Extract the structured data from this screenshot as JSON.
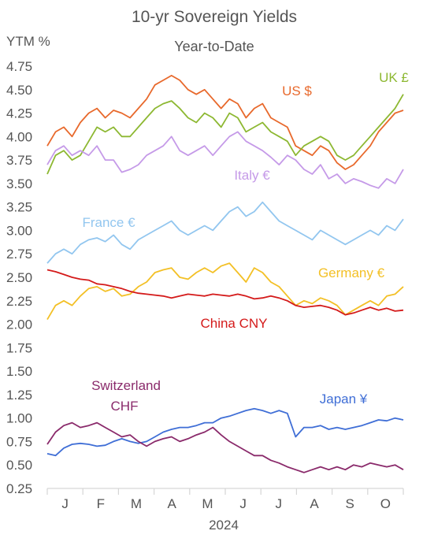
{
  "chart_data": {
    "type": "line",
    "title": "10-yr Sovereign Yields",
    "subtitle": "Year-to-Date",
    "ylabel": "YTM %",
    "xlabel": "2024",
    "ylim": [
      0.25,
      4.75
    ],
    "y_ticks": [
      "4.75",
      "4.50",
      "4.25",
      "4.00",
      "3.75",
      "3.50",
      "3.25",
      "3.00",
      "2.75",
      "2.50",
      "2.25",
      "2.00",
      "1.75",
      "1.50",
      "1.25",
      "1.00",
      "0.75",
      "0.50",
      "0.25"
    ],
    "months": [
      "J",
      "F",
      "M",
      "A",
      "M",
      "J",
      "J",
      "A",
      "S",
      "O"
    ],
    "x_unit": "trading week of 2024 (0 = first week of January)",
    "x_max": 43,
    "series": [
      {
        "name": "US $",
        "color": "#e8692c",
        "x": [
          0,
          1,
          2,
          3,
          4,
          5,
          6,
          7,
          8,
          9,
          10,
          11,
          12,
          13,
          14,
          15,
          16,
          17,
          18,
          19,
          20,
          21,
          22,
          23,
          24,
          25,
          26,
          27,
          28,
          29,
          30,
          31,
          32,
          33,
          34,
          35,
          36,
          37,
          38,
          39,
          40,
          41,
          42,
          43
        ],
        "values": [
          3.9,
          4.05,
          4.1,
          4.0,
          4.15,
          4.25,
          4.3,
          4.2,
          4.28,
          4.25,
          4.2,
          4.3,
          4.4,
          4.55,
          4.6,
          4.65,
          4.6,
          4.5,
          4.45,
          4.5,
          4.4,
          4.3,
          4.4,
          4.35,
          4.2,
          4.3,
          4.35,
          4.2,
          4.15,
          4.1,
          3.9,
          3.85,
          3.8,
          3.9,
          3.85,
          3.72,
          3.65,
          3.7,
          3.8,
          3.9,
          4.05,
          4.15,
          4.25,
          4.28
        ]
      },
      {
        "name": "UK £",
        "color": "#8db832",
        "x": [
          0,
          1,
          2,
          3,
          4,
          5,
          6,
          7,
          8,
          9,
          10,
          11,
          12,
          13,
          14,
          15,
          16,
          17,
          18,
          19,
          20,
          21,
          22,
          23,
          24,
          25,
          26,
          27,
          28,
          29,
          30,
          31,
          32,
          33,
          34,
          35,
          36,
          37,
          38,
          39,
          40,
          41,
          42,
          43
        ],
        "values": [
          3.6,
          3.8,
          3.85,
          3.75,
          3.8,
          3.95,
          4.1,
          4.05,
          4.1,
          4.0,
          4.0,
          4.1,
          4.2,
          4.3,
          4.35,
          4.38,
          4.3,
          4.2,
          4.15,
          4.25,
          4.2,
          4.1,
          4.25,
          4.2,
          4.05,
          4.1,
          4.15,
          4.05,
          4.0,
          3.95,
          3.8,
          3.9,
          3.95,
          4.0,
          3.95,
          3.8,
          3.75,
          3.8,
          3.9,
          4.0,
          4.1,
          4.2,
          4.3,
          4.45
        ]
      },
      {
        "name": "Italy €",
        "color": "#c59ae8",
        "x": [
          0,
          1,
          2,
          3,
          4,
          5,
          6,
          7,
          8,
          9,
          10,
          11,
          12,
          13,
          14,
          15,
          16,
          17,
          18,
          19,
          20,
          21,
          22,
          23,
          24,
          25,
          26,
          27,
          28,
          29,
          30,
          31,
          32,
          33,
          34,
          35,
          36,
          37,
          38,
          39,
          40,
          41,
          42,
          43
        ],
        "values": [
          3.7,
          3.85,
          3.9,
          3.8,
          3.85,
          3.8,
          3.9,
          3.75,
          3.75,
          3.62,
          3.65,
          3.7,
          3.8,
          3.85,
          3.9,
          4.0,
          3.85,
          3.8,
          3.85,
          3.9,
          3.8,
          3.9,
          4.0,
          4.05,
          3.95,
          3.9,
          3.85,
          3.78,
          3.7,
          3.8,
          3.75,
          3.65,
          3.6,
          3.7,
          3.55,
          3.6,
          3.5,
          3.55,
          3.52,
          3.48,
          3.45,
          3.55,
          3.5,
          3.65
        ]
      },
      {
        "name": "France €",
        "color": "#92c6ef",
        "x": [
          0,
          1,
          2,
          3,
          4,
          5,
          6,
          7,
          8,
          9,
          10,
          11,
          12,
          13,
          14,
          15,
          16,
          17,
          18,
          19,
          20,
          21,
          22,
          23,
          24,
          25,
          26,
          27,
          28,
          29,
          30,
          31,
          32,
          33,
          34,
          35,
          36,
          37,
          38,
          39,
          40,
          41,
          42,
          43
        ],
        "values": [
          2.65,
          2.75,
          2.8,
          2.75,
          2.85,
          2.9,
          2.92,
          2.88,
          2.95,
          2.85,
          2.8,
          2.9,
          2.95,
          3.0,
          3.05,
          3.1,
          3.0,
          2.95,
          3.0,
          3.05,
          3.0,
          3.1,
          3.2,
          3.25,
          3.15,
          3.2,
          3.3,
          3.2,
          3.1,
          3.05,
          3.0,
          2.95,
          2.9,
          3.0,
          2.95,
          2.9,
          2.85,
          2.9,
          2.95,
          3.0,
          2.95,
          3.05,
          3.0,
          3.12
        ]
      },
      {
        "name": "Germany €",
        "color": "#f3c026",
        "x": [
          0,
          1,
          2,
          3,
          4,
          5,
          6,
          7,
          8,
          9,
          10,
          11,
          12,
          13,
          14,
          15,
          16,
          17,
          18,
          19,
          20,
          21,
          22,
          23,
          24,
          25,
          26,
          27,
          28,
          29,
          30,
          31,
          32,
          33,
          34,
          35,
          36,
          37,
          38,
          39,
          40,
          41,
          42,
          43
        ],
        "values": [
          2.05,
          2.2,
          2.25,
          2.2,
          2.3,
          2.38,
          2.4,
          2.35,
          2.38,
          2.3,
          2.32,
          2.4,
          2.45,
          2.55,
          2.58,
          2.6,
          2.5,
          2.48,
          2.55,
          2.6,
          2.55,
          2.62,
          2.65,
          2.55,
          2.45,
          2.6,
          2.55,
          2.45,
          2.4,
          2.3,
          2.2,
          2.25,
          2.22,
          2.28,
          2.25,
          2.2,
          2.1,
          2.15,
          2.2,
          2.25,
          2.2,
          2.3,
          2.32,
          2.4
        ]
      },
      {
        "name": "China CNY",
        "color": "#d41a1a",
        "x": [
          0,
          1,
          2,
          3,
          4,
          5,
          6,
          7,
          8,
          9,
          10,
          11,
          12,
          13,
          14,
          15,
          16,
          17,
          18,
          19,
          20,
          21,
          22,
          23,
          24,
          25,
          26,
          27,
          28,
          29,
          30,
          31,
          32,
          33,
          34,
          35,
          36,
          37,
          38,
          39,
          40,
          41,
          42,
          43
        ],
        "values": [
          2.58,
          2.56,
          2.53,
          2.5,
          2.48,
          2.47,
          2.43,
          2.42,
          2.4,
          2.38,
          2.35,
          2.33,
          2.32,
          2.31,
          2.3,
          2.28,
          2.3,
          2.32,
          2.31,
          2.3,
          2.32,
          2.31,
          2.3,
          2.32,
          2.3,
          2.27,
          2.28,
          2.3,
          2.28,
          2.25,
          2.2,
          2.18,
          2.19,
          2.2,
          2.18,
          2.15,
          2.1,
          2.12,
          2.15,
          2.18,
          2.15,
          2.17,
          2.14,
          2.15
        ]
      },
      {
        "name": "Japan ¥",
        "color": "#3f6ed6",
        "x": [
          0,
          1,
          2,
          3,
          4,
          5,
          6,
          7,
          8,
          9,
          10,
          11,
          12,
          13,
          14,
          15,
          16,
          17,
          18,
          19,
          20,
          21,
          22,
          23,
          24,
          25,
          26,
          27,
          28,
          29,
          30,
          31,
          32,
          33,
          34,
          35,
          36,
          37,
          38,
          39,
          40,
          41,
          42,
          43
        ],
        "values": [
          0.62,
          0.6,
          0.68,
          0.72,
          0.73,
          0.72,
          0.7,
          0.71,
          0.75,
          0.78,
          0.75,
          0.73,
          0.75,
          0.8,
          0.85,
          0.88,
          0.9,
          0.9,
          0.92,
          0.95,
          0.95,
          1.0,
          1.02,
          1.05,
          1.08,
          1.1,
          1.08,
          1.05,
          1.08,
          1.05,
          0.8,
          0.9,
          0.9,
          0.92,
          0.88,
          0.9,
          0.88,
          0.9,
          0.92,
          0.95,
          0.98,
          0.97,
          1.0,
          0.98
        ]
      },
      {
        "name": "Switzerland CHF",
        "color": "#8a2a6b",
        "x": [
          0,
          1,
          2,
          3,
          4,
          5,
          6,
          7,
          8,
          9,
          10,
          11,
          12,
          13,
          14,
          15,
          16,
          17,
          18,
          19,
          20,
          21,
          22,
          23,
          24,
          25,
          26,
          27,
          28,
          29,
          30,
          31,
          32,
          33,
          34,
          35,
          36,
          37,
          38,
          39,
          40,
          41,
          42,
          43
        ],
        "values": [
          0.72,
          0.85,
          0.92,
          0.95,
          0.9,
          0.92,
          0.95,
          0.9,
          0.85,
          0.8,
          0.82,
          0.75,
          0.7,
          0.75,
          0.78,
          0.8,
          0.75,
          0.78,
          0.82,
          0.85,
          0.9,
          0.82,
          0.75,
          0.7,
          0.65,
          0.6,
          0.6,
          0.55,
          0.52,
          0.48,
          0.45,
          0.42,
          0.45,
          0.48,
          0.45,
          0.48,
          0.45,
          0.5,
          0.48,
          0.52,
          0.5,
          0.48,
          0.5,
          0.45
        ]
      }
    ]
  }
}
